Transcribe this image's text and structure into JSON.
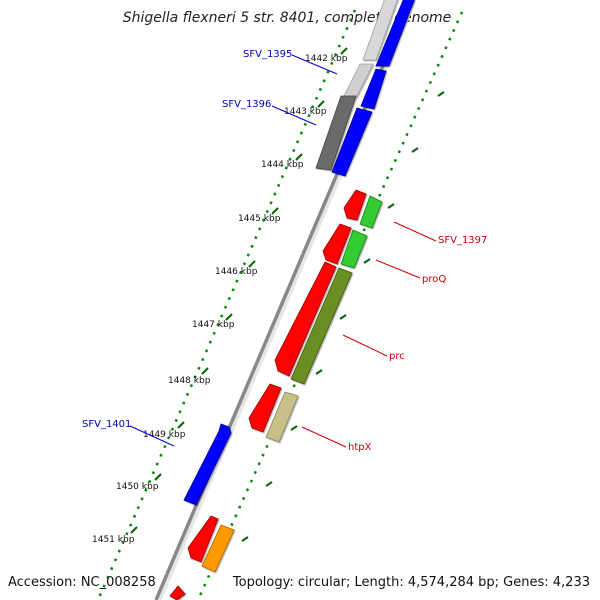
{
  "title": "Shigella flexneri 5 str. 8401, complete genome",
  "footer": {
    "accession": "Accession: NC_008258",
    "summary": "Topology: circular; Length: 4,574,284 bp; Genes: 4,233"
  },
  "ticks": [
    "1442 kbp",
    "1443 kbp",
    "1444 kbp",
    "1445 kbp",
    "1446 kbp",
    "1447 kbp",
    "1448 kbp",
    "1449 kbp",
    "1450 kbp",
    "1451 kbp"
  ],
  "gene_labels": {
    "left": [
      {
        "text": "SFV_1395",
        "color": "#0000bb"
      },
      {
        "text": "SFV_1396",
        "color": "#0000bb"
      },
      {
        "text": "SFV_1401",
        "color": "#0000bb"
      }
    ],
    "right": [
      {
        "text": "SFV_1397",
        "color": "#cc0000"
      },
      {
        "text": "proQ",
        "color": "#cc0000"
      },
      {
        "text": "prc",
        "color": "#cc0000"
      },
      {
        "text": "htpX",
        "color": "#cc0000"
      }
    ]
  },
  "colors": {
    "forward_cds": "#0000ff",
    "reverse_cds": "#ff0000",
    "green_feature": "#33cc33",
    "olive_feature": "#6b8e23",
    "khaki_feature": "#c8c088",
    "orange_feature": "#ff9900",
    "gray_feature": "#666666",
    "light_gray_feature": "#cccccc",
    "backbone": "#888888",
    "tick": "#006600"
  }
}
